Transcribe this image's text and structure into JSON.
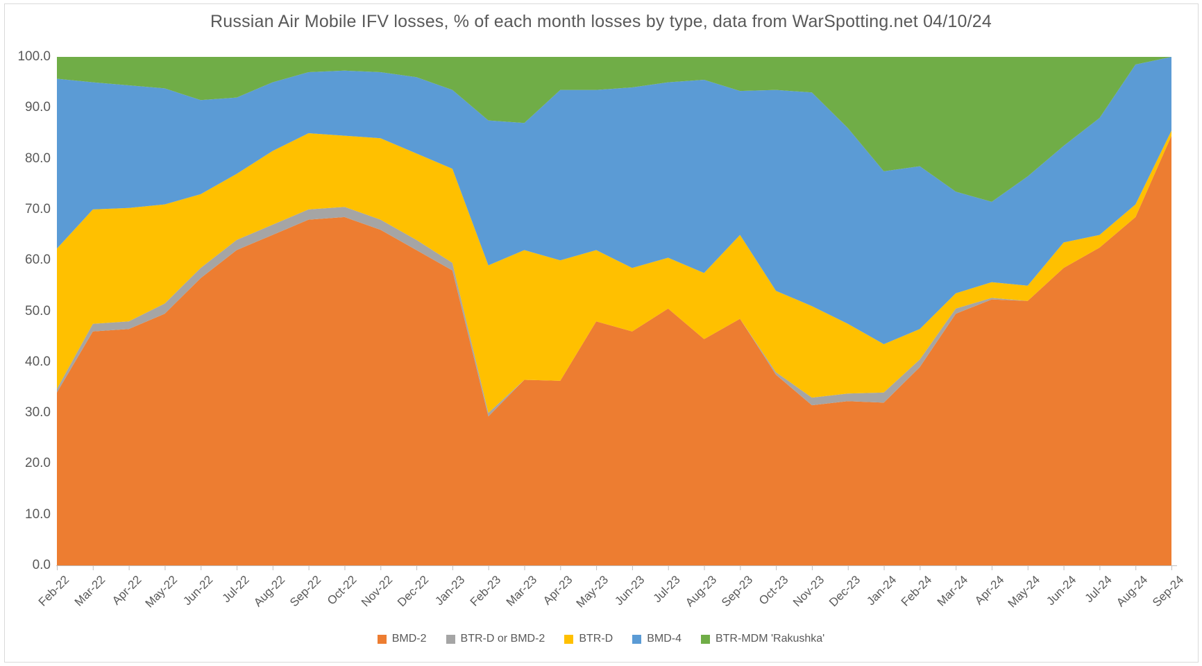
{
  "title": "Russian Air Mobile IFV losses, % of each month losses by type, data from WarSpotting.net 04/10/24",
  "colors": {
    "background": "#FFFFFF",
    "frame_border": "#D9D9D9",
    "text": "#595959",
    "axis_line": "#BFBFBF"
  },
  "chart_data": {
    "type": "area",
    "stacking": "percent",
    "title": "Russian Air Mobile IFV losses, % of each month losses by type, data from WarSpotting.net 04/10/24",
    "xlabel": "",
    "ylabel": "",
    "ylim": [
      0,
      100
    ],
    "grid": false,
    "legend_position": "bottom",
    "y_tick_labels": [
      "0.0",
      "10.0",
      "20.0",
      "30.0",
      "40.0",
      "50.0",
      "60.0",
      "70.0",
      "80.0",
      "90.0",
      "100.0"
    ],
    "x": [
      "Feb-22",
      "Mar-22",
      "Apr-22",
      "May-22",
      "Jun-22",
      "Jul-22",
      "Aug-22",
      "Sep-22",
      "Oct-22",
      "Nov-22",
      "Dec-22",
      "Jan-23",
      "Feb-23",
      "Mar-23",
      "Apr-23",
      "May-23",
      "Jun-23",
      "Jul-23",
      "Aug-23",
      "Sep-23",
      "Oct-23",
      "Nov-23",
      "Dec-23",
      "Jan-24",
      "Feb-24",
      "Mar-24",
      "Apr-24",
      "May-24",
      "Jun-24",
      "Jul-24",
      "Aug-24",
      "Sep-24"
    ],
    "series": [
      {
        "name": "BMD-2",
        "color": "#ED7D31",
        "values": [
          34.0,
          46.0,
          46.5,
          49.5,
          56.5,
          62.0,
          65.0,
          68.0,
          68.5,
          66.0,
          62.0,
          58.0,
          29.3,
          36.5,
          36.3,
          48.0,
          46.0,
          50.5,
          44.5,
          48.5,
          37.5,
          31.5,
          32.3,
          32.0,
          39.0,
          49.5,
          52.3,
          52.0,
          58.5,
          62.5,
          68.5,
          84.5
        ]
      },
      {
        "name": "BTR-D or BMD-2",
        "color": "#A5A5A5",
        "values": [
          0.7,
          1.5,
          1.5,
          2.0,
          2.0,
          2.0,
          2.0,
          2.0,
          2.0,
          2.0,
          2.0,
          1.5,
          0.7,
          0.0,
          0.0,
          0.0,
          0.0,
          0.0,
          0.0,
          0.0,
          0.5,
          1.5,
          1.5,
          2.0,
          1.5,
          1.0,
          0.3,
          0.0,
          0.0,
          0.0,
          0.0,
          0.0
        ]
      },
      {
        "name": "BTR-D",
        "color": "#FFC000",
        "values": [
          27.6,
          22.5,
          22.3,
          19.5,
          14.5,
          13.0,
          14.5,
          15.0,
          14.0,
          16.0,
          17.0,
          18.5,
          29.0,
          25.5,
          23.7,
          14.0,
          12.5,
          10.0,
          13.0,
          16.5,
          16.0,
          18.0,
          13.7,
          9.5,
          6.0,
          3.0,
          3.1,
          3.0,
          5.0,
          2.5,
          2.5,
          1.0
        ]
      },
      {
        "name": "BMD-4",
        "color": "#5B9BD5",
        "values": [
          33.4,
          25.0,
          24.1,
          22.8,
          18.5,
          15.0,
          13.5,
          12.0,
          12.8,
          13.0,
          15.0,
          15.5,
          28.5,
          25.0,
          33.5,
          31.5,
          35.5,
          34.5,
          38.0,
          28.3,
          39.5,
          42.0,
          38.5,
          34.0,
          32.0,
          20.0,
          15.8,
          21.5,
          19.0,
          23.0,
          27.5,
          14.5
        ]
      },
      {
        "name": "BTR-MDM 'Rakushka'",
        "color": "#70AD47",
        "values": [
          4.3,
          5.0,
          5.6,
          6.2,
          8.5,
          8.0,
          5.0,
          3.0,
          2.7,
          3.0,
          4.0,
          6.5,
          12.5,
          13.0,
          6.5,
          6.5,
          6.0,
          5.0,
          4.5,
          6.7,
          6.5,
          7.0,
          14.0,
          22.5,
          21.5,
          26.5,
          28.5,
          23.5,
          17.5,
          12.0,
          1.5,
          0.0
        ]
      }
    ]
  }
}
